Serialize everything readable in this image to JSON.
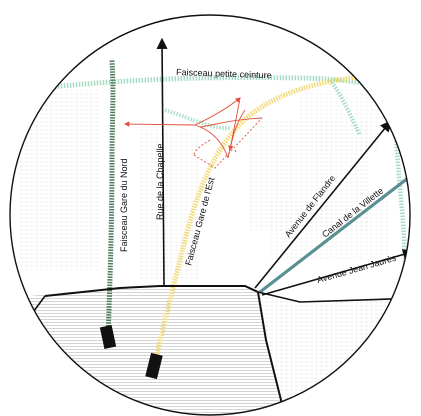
{
  "map": {
    "labels": {
      "petite_ceinture": "Faisceau petite ceinture",
      "gare_du_nord": "Faisceau Gare du Nord",
      "rue_chapelle": "Rue de la Chapelle",
      "gare_est": "Faisceau Gare de l'Est",
      "avenue_flandre": "Avenue de Flandre",
      "canal_villette": "Canal de la Villette",
      "avenue_jaures": "Avenue Jean Jaurès"
    },
    "colors": {
      "gare_du_nord_rail": "#4f7a5a",
      "petite_ceinture_rail": "#a6dcc4",
      "gare_est_rail": "#f2dc7a",
      "canal": "#5b8f91",
      "street": "#111111",
      "interchange": "#e0503a",
      "hatch": "#cfcfcf"
    },
    "icons": [
      "terminus-block-icon",
      "arrow-head-icon"
    ]
  }
}
